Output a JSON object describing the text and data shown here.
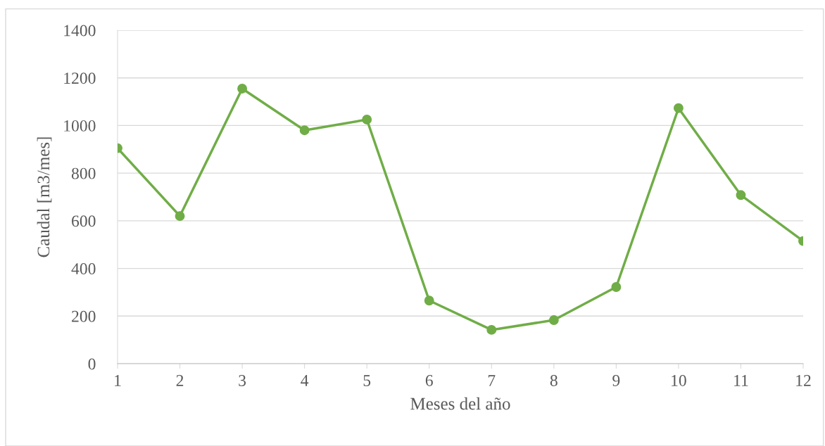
{
  "chart_data": {
    "type": "line",
    "xlabel": "Meses del año",
    "ylabel": "Caudal [m3/mes]",
    "x": [
      1,
      2,
      3,
      4,
      5,
      6,
      7,
      8,
      9,
      10,
      11,
      12
    ],
    "series": [
      {
        "color": "#70ad47",
        "values": [
          905,
          620,
          1155,
          980,
          1025,
          265,
          142,
          183,
          322,
          1073,
          708,
          515
        ]
      }
    ],
    "xlim": [
      1,
      12
    ],
    "xticks": [
      1,
      2,
      3,
      4,
      5,
      6,
      7,
      8,
      9,
      10,
      11,
      12
    ],
    "ylim": [
      0,
      1400
    ],
    "yticks": [
      0,
      200,
      400,
      600,
      800,
      1000,
      1200,
      1400
    ],
    "grid": "y",
    "marker": "circle",
    "line_style": "solid",
    "legend": false
  }
}
